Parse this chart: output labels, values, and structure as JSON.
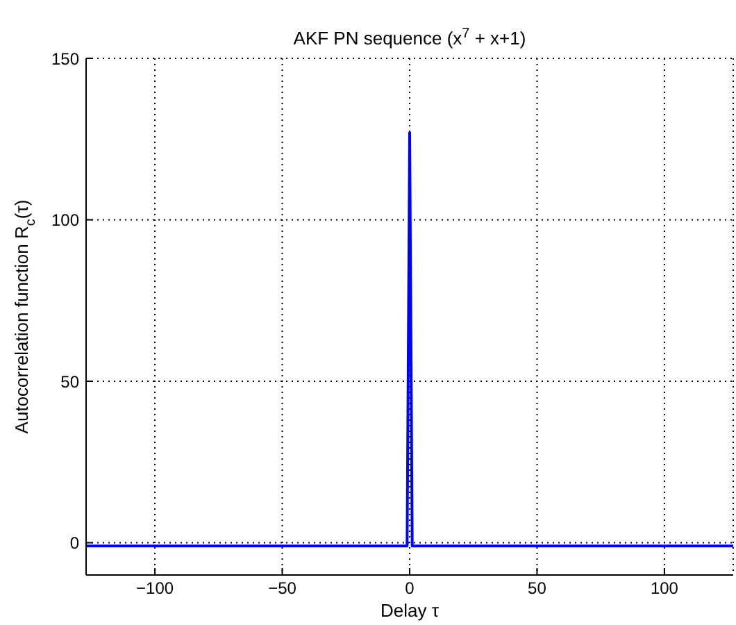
{
  "chart_data": {
    "type": "line",
    "title": "AKF PN sequence (x$^{7}$ + x+1)",
    "xlabel": "Delay τ",
    "ylabel": "Autocorrelation function R$_{c}$(τ)",
    "x": [
      -127,
      -1,
      0,
      1,
      127
    ],
    "series": [
      {
        "color": "#0000ff",
        "values": [
          -1,
          -1,
          127,
          -1,
          -1
        ]
      }
    ],
    "xlim": [
      -127,
      127
    ],
    "xticks": [
      -100,
      -50,
      0,
      50,
      100
    ],
    "ylim": [
      -10,
      150
    ],
    "yticks": [
      0,
      50,
      100,
      150
    ],
    "grid": true,
    "line_style": "solid",
    "marker": "none"
  }
}
